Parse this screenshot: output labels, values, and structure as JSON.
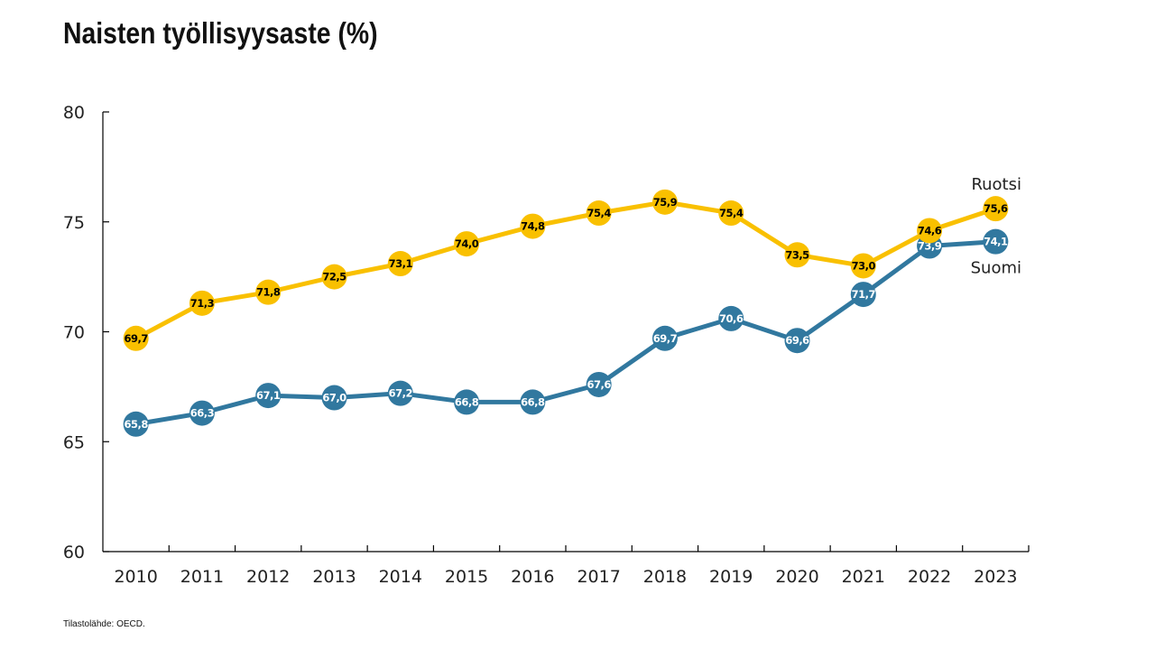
{
  "title": "Naisten työllisyysaste (%)",
  "source": "Tilastolähde: OECD.",
  "chart_data": {
    "type": "line",
    "title": "Naisten työllisyysaste (%)",
    "xlabel": "",
    "ylabel": "",
    "categories": [
      "2010",
      "2011",
      "2012",
      "2013",
      "2014",
      "2015",
      "2016",
      "2017",
      "2018",
      "2019",
      "2020",
      "2021",
      "2022",
      "2023"
    ],
    "ylim": [
      60,
      80
    ],
    "yticks": [
      60,
      65,
      70,
      75,
      80
    ],
    "grid": false,
    "legend": "inline-right",
    "series": [
      {
        "name": "Suomi",
        "color": "#31789F",
        "label_color": "#ffffff",
        "values": [
          65.8,
          66.3,
          67.1,
          67.0,
          67.2,
          66.8,
          66.8,
          67.6,
          69.7,
          70.6,
          69.6,
          71.7,
          73.9,
          74.1
        ],
        "labels": [
          "65,8",
          "66,3",
          "67,1",
          "67,0",
          "67,2",
          "66,8",
          "66,8",
          "67,6",
          "69,7",
          "70,6",
          "69,6",
          "71,7",
          "73,9",
          "74,1"
        ]
      },
      {
        "name": "Ruotsi",
        "color": "#F9C000",
        "label_color": "#000000",
        "values": [
          69.7,
          71.3,
          71.8,
          72.5,
          73.1,
          74.0,
          74.8,
          75.4,
          75.9,
          75.4,
          73.5,
          73.0,
          74.6,
          75.6
        ],
        "labels": [
          "69,7",
          "71,3",
          "71,8",
          "72,5",
          "73,1",
          "74,0",
          "74,8",
          "75,4",
          "75,9",
          "75,4",
          "73,5",
          "73,0",
          "74,6",
          "75,6"
        ]
      }
    ]
  }
}
